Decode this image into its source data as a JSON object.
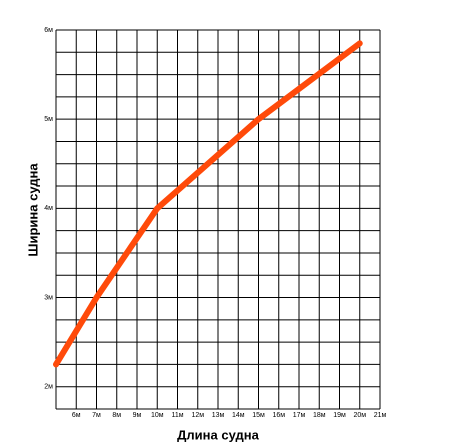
{
  "chart_data": {
    "type": "line",
    "x_label": "Длина судна",
    "y_label": "Ширина судна",
    "x": [
      5,
      7,
      10,
      15,
      20
    ],
    "series": [
      {
        "name": "Ширина",
        "color": "#ff4a0a",
        "values": [
          2.25,
          3,
          4,
          5,
          5.85
        ]
      }
    ],
    "xlim": [
      5,
      21
    ],
    "ylim": [
      1.75,
      6
    ],
    "xticks": [
      {
        "value": 6,
        "label": "6м"
      },
      {
        "value": 7,
        "label": "7м"
      },
      {
        "value": 8,
        "label": "8м"
      },
      {
        "value": 9,
        "label": "9м"
      },
      {
        "value": 10,
        "label": "10м"
      },
      {
        "value": 11,
        "label": "11м"
      },
      {
        "value": 12,
        "label": "12м"
      },
      {
        "value": 13,
        "label": "13м"
      },
      {
        "value": 14,
        "label": "14м"
      },
      {
        "value": 15,
        "label": "15м"
      },
      {
        "value": 16,
        "label": "16м"
      },
      {
        "value": 17,
        "label": "17м"
      },
      {
        "value": 18,
        "label": "18м"
      },
      {
        "value": 19,
        "label": "19м"
      },
      {
        "value": 20,
        "label": "20м"
      },
      {
        "value": 21,
        "label": "21м"
      }
    ],
    "yticks": [
      {
        "value": 2,
        "label": "2м"
      },
      {
        "value": 3,
        "label": "3м"
      },
      {
        "value": 4,
        "label": "4м"
      },
      {
        "value": 5,
        "label": "5м"
      },
      {
        "value": 6,
        "label": "6м"
      }
    ],
    "y_grid_lines": [
      1.75,
      2,
      2.25,
      2.5,
      2.75,
      3,
      3.25,
      3.5,
      3.75,
      4,
      4.25,
      4.5,
      4.75,
      5,
      5.25,
      5.5,
      5.75,
      6
    ],
    "grid": true
  }
}
